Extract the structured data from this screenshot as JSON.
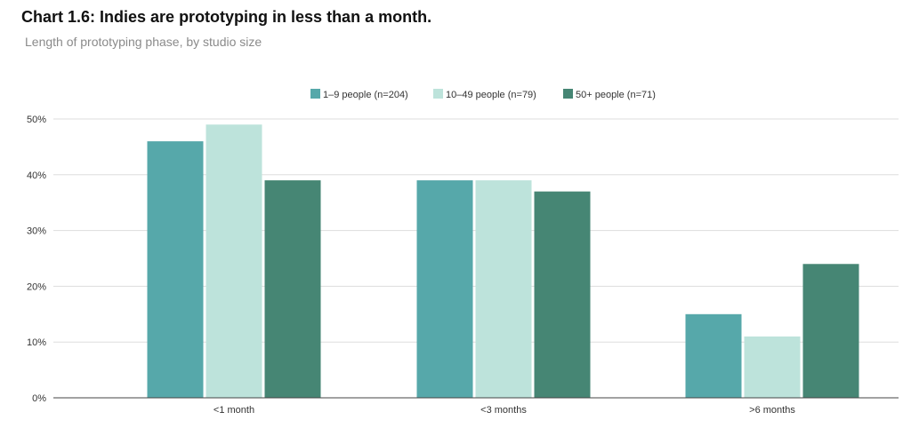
{
  "title": "Chart 1.6: Indies are prototyping in less than a month.",
  "subtitle": "Length of prototyping phase, by studio size",
  "chart_data": {
    "type": "bar",
    "categories": [
      "<1 month",
      "<3 months",
      ">6 months"
    ],
    "series": [
      {
        "name": "1–9 people (n=204)",
        "values": [
          46,
          39,
          15
        ],
        "color": "#56a8aa"
      },
      {
        "name": "10–49 people (n=79)",
        "values": [
          49,
          39,
          11
        ],
        "color": "#bde3db"
      },
      {
        "name": "50+ people (n=71)",
        "values": [
          39,
          37,
          24
        ],
        "color": "#468674"
      }
    ],
    "y_ticks": [
      "0%",
      "10%",
      "20%",
      "30%",
      "40%",
      "50%"
    ],
    "ylim": [
      0,
      50
    ],
    "grid": true,
    "legend_position": "top-center"
  }
}
